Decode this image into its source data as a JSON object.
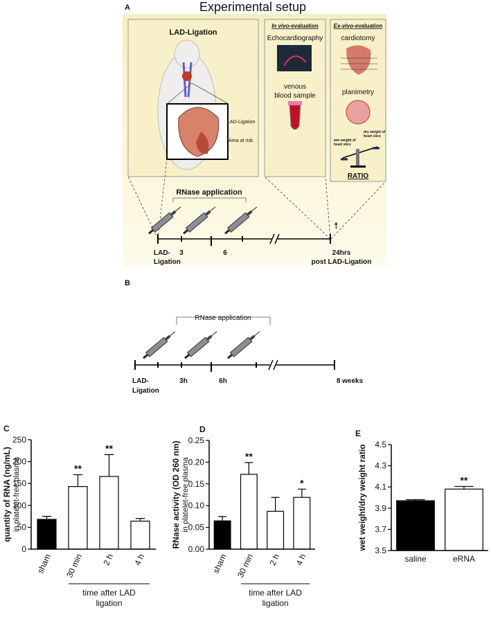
{
  "figure": {
    "panel_a": {
      "label": "A",
      "title": "Experimental setup",
      "lad_box_title": "LAD-Ligation",
      "heart_label_1": "LAD-Ligation",
      "heart_label_2": "Area at risk",
      "in_vivo_title": [
        "In vivo",
        "-evaluation"
      ],
      "echo": "Echocardiography",
      "blood": [
        "venous",
        "blood sample"
      ],
      "ex_vivo_title": [
        "Ex-vivo",
        "-evaluation"
      ],
      "cardiotomy": "cardiotomy",
      "planimetry": "planimetry",
      "wet": [
        "wet weight of",
        "heart slice"
      ],
      "dry": [
        "dry weight of",
        "heart slice"
      ],
      "ratio": "RATIO",
      "rnase": "RNase application",
      "start": [
        "LAD-",
        "Ligation"
      ],
      "t1": "3",
      "t2": "6",
      "end": [
        "24hrs",
        "post LAD-Ligation"
      ],
      "dagger": "†"
    },
    "panel_b": {
      "label": "B",
      "rnase": "RNase application",
      "start": [
        "LAD-",
        "Ligation"
      ],
      "t1": "3h",
      "t2": "6h",
      "end": "8 weeks"
    }
  },
  "chart_data": [
    {
      "type": "bar",
      "panel": "C",
      "ylabel": "quantity of RNA (ng/mL)",
      "ylabel_sub": "in platelet-free plasma",
      "categories": [
        "sham",
        "30 min",
        "2 h",
        "4 h"
      ],
      "values": [
        68,
        143,
        166,
        64
      ],
      "errors": [
        7,
        27,
        50,
        6
      ],
      "colors": [
        "#000000",
        "#ffffff",
        "#ffffff",
        "#ffffff"
      ],
      "annotations": [
        null,
        "**",
        "**",
        null
      ],
      "xlabel_lines": [
        "time after LAD",
        "ligation"
      ],
      "ylim": [
        0,
        250
      ],
      "yticks": [
        0,
        50,
        100,
        150,
        200,
        250
      ]
    },
    {
      "type": "bar",
      "panel": "D",
      "ylabel": "RNase activity (OD 260 nm)",
      "ylabel_sub": "in platelet-free plasma",
      "categories": [
        "sham",
        "30 min",
        "2 h",
        "4 h"
      ],
      "values": [
        0.065,
        0.172,
        0.087,
        0.119
      ],
      "errors": [
        0.01,
        0.027,
        0.032,
        0.019
      ],
      "colors": [
        "#000000",
        "#ffffff",
        "#ffffff",
        "#ffffff"
      ],
      "annotations": [
        null,
        "**",
        null,
        "*"
      ],
      "xlabel_lines": [
        "time after LAD",
        "ligation"
      ],
      "ylim": [
        0,
        0.25
      ],
      "yticks": [
        {
          "value": 0,
          "label": "0.00"
        },
        {
          "value": 0.05,
          "label": "0.05"
        },
        {
          "value": 0.1,
          "label": "0.10"
        },
        {
          "value": 0.15,
          "label": "0.15"
        },
        {
          "value": 0.2,
          "label": "0.20"
        },
        {
          "value": 0.25,
          "label": "0.25"
        }
      ]
    },
    {
      "type": "bar",
      "panel": "E",
      "ylabel": "wet weight/dry weight ratio",
      "categories": [
        "saline",
        "eRNA"
      ],
      "values": [
        3.97,
        4.08
      ],
      "errors": [
        0.01,
        0.025
      ],
      "colors": [
        "#000000",
        "#ffffff"
      ],
      "annotations": [
        null,
        "**"
      ],
      "ylim": [
        3.5,
        4.5
      ],
      "yticks": [
        3.5,
        3.7,
        3.9,
        4.1,
        4.3,
        4.5
      ]
    }
  ]
}
